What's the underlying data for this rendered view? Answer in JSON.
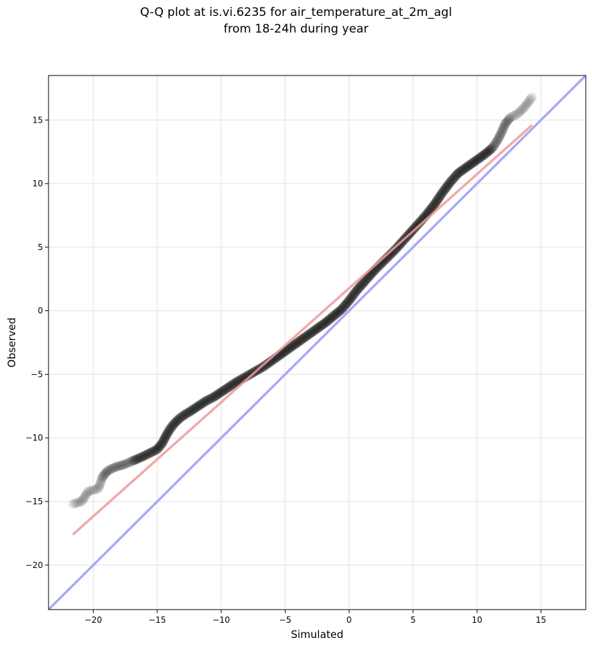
{
  "chart_data": {
    "type": "scatter",
    "title_line1": "Q-Q plot at is.vi.6235 for air_temperature_at_2m_agl",
    "title_line2": "from 18-24h during year",
    "xlabel": "Simulated",
    "ylabel": "Observed",
    "xlim": [
      -23.5,
      18.5
    ],
    "ylim": [
      -23.5,
      18.5
    ],
    "xticks": [
      -20,
      -15,
      -10,
      -5,
      0,
      5,
      10,
      15
    ],
    "yticks": [
      -20,
      -15,
      -10,
      -5,
      0,
      5,
      10,
      15
    ],
    "xtick_labels": [
      "−20",
      "−15",
      "−10",
      "−5",
      "0",
      "5",
      "10",
      "15"
    ],
    "ytick_labels": [
      "−20",
      "−15",
      "−10",
      "−5",
      "0",
      "5",
      "10",
      "15"
    ],
    "grid": true,
    "series": [
      {
        "kind": "quantile-points",
        "color": "#000000",
        "points": [
          [
            -21.6,
            -15.2
          ],
          [
            -20.9,
            -15.0
          ],
          [
            -20.4,
            -14.2
          ],
          [
            -19.6,
            -14.0
          ],
          [
            -19.3,
            -13.1
          ],
          [
            -18.9,
            -12.6
          ],
          [
            -18.3,
            -12.3
          ],
          [
            -17.6,
            -12.1
          ],
          [
            -16.9,
            -11.8
          ],
          [
            -16.2,
            -11.5
          ],
          [
            -15.6,
            -11.2
          ],
          [
            -15.0,
            -10.9
          ],
          [
            -14.6,
            -10.4
          ],
          [
            -14.3,
            -9.8
          ],
          [
            -14.0,
            -9.3
          ],
          [
            -13.7,
            -8.9
          ],
          [
            -13.3,
            -8.5
          ],
          [
            -12.9,
            -8.2
          ],
          [
            -12.4,
            -7.9
          ],
          [
            -11.8,
            -7.5
          ],
          [
            -11.2,
            -7.1
          ],
          [
            -10.6,
            -6.8
          ],
          [
            -10.0,
            -6.4
          ],
          [
            -9.4,
            -6.0
          ],
          [
            -8.8,
            -5.6
          ],
          [
            -8.1,
            -5.2
          ],
          [
            -7.4,
            -4.8
          ],
          [
            -6.7,
            -4.4
          ],
          [
            -6.0,
            -3.9
          ],
          [
            -5.3,
            -3.4
          ],
          [
            -4.6,
            -2.9
          ],
          [
            -3.9,
            -2.4
          ],
          [
            -3.2,
            -1.9
          ],
          [
            -2.5,
            -1.4
          ],
          [
            -1.8,
            -0.9
          ],
          [
            -1.2,
            -0.4
          ],
          [
            -0.6,
            0.1
          ],
          [
            0.0,
            0.8
          ],
          [
            0.6,
            1.6
          ],
          [
            1.3,
            2.4
          ],
          [
            2.0,
            3.2
          ],
          [
            2.8,
            4.0
          ],
          [
            3.6,
            4.8
          ],
          [
            4.4,
            5.7
          ],
          [
            5.2,
            6.6
          ],
          [
            6.0,
            7.5
          ],
          [
            6.7,
            8.4
          ],
          [
            7.3,
            9.3
          ],
          [
            7.9,
            10.1
          ],
          [
            8.5,
            10.8
          ],
          [
            9.2,
            11.3
          ],
          [
            9.9,
            11.8
          ],
          [
            10.6,
            12.3
          ],
          [
            11.2,
            12.8
          ],
          [
            11.6,
            13.4
          ],
          [
            11.9,
            14.0
          ],
          [
            12.2,
            14.7
          ],
          [
            12.6,
            15.2
          ],
          [
            13.2,
            15.5
          ],
          [
            13.7,
            16.0
          ],
          [
            14.3,
            16.8
          ]
        ]
      },
      {
        "kind": "fit-line",
        "color": "#f4a4a4",
        "points": [
          [
            -21.6,
            -17.6
          ],
          [
            14.3,
            14.6
          ]
        ]
      },
      {
        "kind": "identity-line",
        "color": "#a9a9f7",
        "points": [
          [
            -23.5,
            -23.5
          ],
          [
            18.5,
            18.5
          ]
        ]
      }
    ]
  }
}
